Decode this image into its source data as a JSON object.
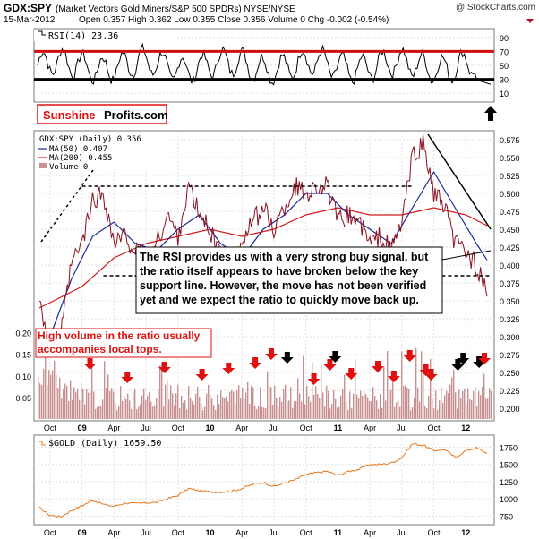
{
  "header": {
    "ticker": "GDX:SPY",
    "description": "(Market Vectors Gold Miners/S&P 500 SPDRs) NYSE/NYSE",
    "date": "15-Mar-2012",
    "quote": "Open 0.357  High 0.362  Low 0.355  Close 0.356  Volume 0  Chg -0.002 (-0.54%)",
    "watermark": "@ StockCharts.com"
  },
  "brand": {
    "part1": "Sunshine",
    "part2": "Profits.com"
  },
  "annotations": {
    "main": "The RSI provides us with a very strong buy signal, but the ratio itself appears to have broken below the key support line. However, the move has not been verified yet and we expect the ratio to quickly move back up.",
    "volume": "High volume in the ratio usually accompanies local tops."
  },
  "colors": {
    "price": "#8b1020",
    "ma50": "#1a2a9c",
    "ma200": "#d41a1a",
    "gold": "#e8761a",
    "volume": "#c89090",
    "rsi_band": "#cc1010",
    "arrow_red": "#e01010",
    "arrow_black": "#000000",
    "brand_red": "#e01010"
  },
  "chart_data": [
    {
      "type": "line",
      "name": "rsi-panel",
      "title": "RSI(14) 23.36",
      "ylim": [
        0,
        100
      ],
      "y_ticks": [
        10,
        30,
        50,
        70,
        90
      ],
      "bands": [
        30,
        70
      ],
      "last": 23.36,
      "signal": "up-arrow"
    },
    {
      "type": "line",
      "name": "ratio-panel",
      "title": "GDX:SPY (Daily) 0.356",
      "legend": [
        "MA(50) 0.407",
        "MA(200) 0.455",
        "Volume 0"
      ],
      "ylim": [
        0.185,
        0.585
      ],
      "y_ticks": [
        "0.575",
        "0.550",
        "0.525",
        "0.500",
        "0.475",
        "0.450",
        "0.425",
        "0.400",
        "0.375",
        "0.350",
        "0.325",
        "0.300",
        "0.275",
        "0.250",
        "0.225",
        "0.200"
      ],
      "x_ticks": [
        "Oct",
        "09",
        "Apr",
        "Jul",
        "Oct",
        "10",
        "Apr",
        "Jul",
        "Oct",
        "11",
        "Apr",
        "Jul",
        "Oct",
        "12"
      ],
      "x_range": [
        "2008-09",
        "2012-03"
      ],
      "resistance": 0.51,
      "support": 0.385,
      "series": [
        {
          "name": "GDX:SPY",
          "date": [
            "2008-09",
            "2008-10",
            "2008-11",
            "2008-12",
            "2009-01",
            "2009-02",
            "2009-03",
            "2009-04",
            "2009-05",
            "2009-06",
            "2009-07",
            "2009-08",
            "2009-09",
            "2009-10",
            "2009-11",
            "2009-12",
            "2010-01",
            "2010-02",
            "2010-03",
            "2010-04",
            "2010-05",
            "2010-06",
            "2010-07",
            "2010-08",
            "2010-09",
            "2010-10",
            "2010-11",
            "2010-12",
            "2011-01",
            "2011-02",
            "2011-03",
            "2011-04",
            "2011-05",
            "2011-06",
            "2011-07",
            "2011-08",
            "2011-09",
            "2011-10",
            "2011-11",
            "2011-12",
            "2012-01",
            "2012-02",
            "2012-03"
          ],
          "values": [
            0.36,
            0.28,
            0.3,
            0.4,
            0.43,
            0.49,
            0.5,
            0.43,
            0.44,
            0.42,
            0.4,
            0.43,
            0.47,
            0.44,
            0.51,
            0.47,
            0.45,
            0.41,
            0.4,
            0.43,
            0.46,
            0.48,
            0.45,
            0.48,
            0.51,
            0.5,
            0.51,
            0.51,
            0.46,
            0.47,
            0.46,
            0.43,
            0.44,
            0.42,
            0.46,
            0.55,
            0.57,
            0.5,
            0.48,
            0.43,
            0.42,
            0.4,
            0.356
          ]
        },
        {
          "name": "MA(50)",
          "date": [
            "2008-10",
            "2008-12",
            "2009-02",
            "2009-04",
            "2009-06",
            "2009-08",
            "2009-10",
            "2009-12",
            "2010-02",
            "2010-04",
            "2010-06",
            "2010-08",
            "2010-10",
            "2010-12",
            "2011-02",
            "2011-04",
            "2011-06",
            "2011-08",
            "2011-10",
            "2011-12",
            "2012-02",
            "2012-03"
          ],
          "values": [
            0.3,
            0.38,
            0.44,
            0.46,
            0.43,
            0.42,
            0.45,
            0.47,
            0.43,
            0.41,
            0.45,
            0.47,
            0.5,
            0.5,
            0.47,
            0.45,
            0.43,
            0.48,
            0.53,
            0.48,
            0.43,
            0.407
          ]
        },
        {
          "name": "MA(200)",
          "date": [
            "2008-09",
            "2009-01",
            "2009-04",
            "2009-07",
            "2009-10",
            "2010-01",
            "2010-04",
            "2010-07",
            "2010-10",
            "2011-01",
            "2011-04",
            "2011-07",
            "2011-10",
            "2012-01",
            "2012-03"
          ],
          "values": [
            0.34,
            0.37,
            0.41,
            0.43,
            0.44,
            0.45,
            0.44,
            0.45,
            0.47,
            0.48,
            0.47,
            0.47,
            0.48,
            0.47,
            0.455
          ]
        }
      ],
      "volume_ylim": [
        0,
        0.22
      ],
      "volume_ticks": [
        "0.20",
        "0.15",
        "0.10",
        "0.05"
      ],
      "volume_markers": [
        {
          "date": "2009-02",
          "color": "red"
        },
        {
          "date": "2009-05",
          "color": "red"
        },
        {
          "date": "2009-09",
          "color": "red"
        },
        {
          "date": "2009-12",
          "color": "red"
        },
        {
          "date": "2010-03",
          "color": "red"
        },
        {
          "date": "2010-05",
          "color": "red"
        },
        {
          "date": "2010-07",
          "color": "red"
        },
        {
          "date": "2010-08",
          "color": "black"
        },
        {
          "date": "2010-11",
          "color": "red"
        },
        {
          "date": "2010-12",
          "color": "red"
        },
        {
          "date": "2011-01",
          "color": "black"
        },
        {
          "date": "2011-02",
          "color": "red"
        },
        {
          "date": "2011-05",
          "color": "red"
        },
        {
          "date": "2011-06",
          "color": "red"
        },
        {
          "date": "2011-08",
          "color": "red"
        },
        {
          "date": "2011-09",
          "color": "red"
        },
        {
          "date": "2011-10",
          "color": "red"
        },
        {
          "date": "2011-12",
          "color": "black"
        },
        {
          "date": "2012-01",
          "color": "black"
        },
        {
          "date": "2012-02",
          "color": "black"
        },
        {
          "date": "2012-03",
          "color": "red"
        }
      ]
    },
    {
      "type": "line",
      "name": "gold-panel",
      "title": "$GOLD (Daily) 1659.50",
      "ylim": [
        650,
        1900
      ],
      "y_ticks": [
        "1750",
        "1500",
        "1250",
        "1000",
        "750"
      ],
      "x_ticks": [
        "Oct",
        "09",
        "Apr",
        "Jul",
        "Oct",
        "10",
        "Apr",
        "Jul",
        "Oct",
        "11",
        "Apr",
        "Jul",
        "Oct",
        "12"
      ],
      "series": [
        {
          "name": "$GOLD",
          "date": [
            "2008-09",
            "2008-10",
            "2008-11",
            "2008-12",
            "2009-01",
            "2009-02",
            "2009-03",
            "2009-04",
            "2009-05",
            "2009-06",
            "2009-07",
            "2009-08",
            "2009-09",
            "2009-10",
            "2009-11",
            "2009-12",
            "2010-01",
            "2010-02",
            "2010-03",
            "2010-04",
            "2010-05",
            "2010-06",
            "2010-07",
            "2010-08",
            "2010-09",
            "2010-10",
            "2010-11",
            "2010-12",
            "2011-01",
            "2011-02",
            "2011-03",
            "2011-04",
            "2011-05",
            "2011-06",
            "2011-07",
            "2011-08",
            "2011-09",
            "2011-10",
            "2011-11",
            "2011-12",
            "2012-01",
            "2012-02",
            "2012-03"
          ],
          "values": [
            870,
            760,
            740,
            830,
            900,
            980,
            920,
            890,
            940,
            930,
            940,
            950,
            1000,
            1050,
            1150,
            1120,
            1100,
            1100,
            1110,
            1150,
            1210,
            1240,
            1180,
            1230,
            1280,
            1350,
            1380,
            1400,
            1340,
            1400,
            1430,
            1500,
            1500,
            1520,
            1600,
            1800,
            1780,
            1700,
            1720,
            1600,
            1700,
            1740,
            1659.5
          ]
        }
      ]
    }
  ]
}
